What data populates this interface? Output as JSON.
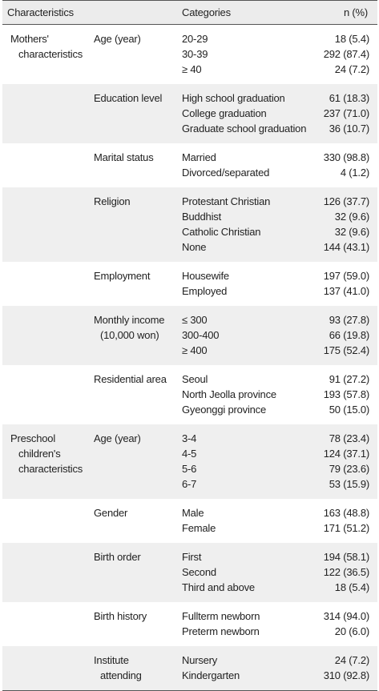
{
  "header": {
    "characteristics": "Characteristics",
    "categories": "Categories",
    "n_percent": "n (%)"
  },
  "groups": [
    {
      "label_lines": [
        "Mothers'",
        "characteristics"
      ]
    },
    {
      "label_lines": [
        "Preschool",
        "children's",
        "characteristics"
      ]
    }
  ],
  "rows": [
    {
      "group": 0,
      "shaded": false,
      "label_lines": [
        "Age (year)"
      ],
      "categories": [
        "20-29",
        "30-39",
        "≥ 40"
      ],
      "values": [
        "18 (5.4)",
        "292 (87.4)",
        "24 (7.2)"
      ]
    },
    {
      "group": 0,
      "shaded": true,
      "label_lines": [
        "Education level"
      ],
      "categories": [
        "High school graduation",
        "College graduation",
        "Graduate school graduation"
      ],
      "values": [
        "61 (18.3)",
        "237 (71.0)",
        "36 (10.7)"
      ]
    },
    {
      "group": 0,
      "shaded": false,
      "label_lines": [
        "Marital status"
      ],
      "categories": [
        "Married",
        "Divorced/separated"
      ],
      "values": [
        "330 (98.8)",
        "4 (1.2)"
      ]
    },
    {
      "group": 0,
      "shaded": true,
      "label_lines": [
        "Religion"
      ],
      "categories": [
        "Protestant Christian",
        "Buddhist",
        "Catholic Christian",
        "None"
      ],
      "values": [
        "126 (37.7)",
        "32 (9.6)",
        "32 (9.6)",
        "144 (43.1)"
      ]
    },
    {
      "group": 0,
      "shaded": false,
      "label_lines": [
        "Employment"
      ],
      "categories": [
        "Housewife",
        "Employed"
      ],
      "values": [
        "197 (59.0)",
        "137 (41.0)"
      ]
    },
    {
      "group": 0,
      "shaded": true,
      "label_lines": [
        "Monthly income",
        "(10,000 won)"
      ],
      "categories": [
        "≤ 300",
        "300-400",
        "≥ 400"
      ],
      "values": [
        "93 (27.8)",
        "66 (19.8)",
        "175 (52.4)"
      ]
    },
    {
      "group": 0,
      "shaded": false,
      "label_lines": [
        "Residential area"
      ],
      "categories": [
        "Seoul",
        "North Jeolla province",
        "Gyeonggi province"
      ],
      "values": [
        "91 (27.2)",
        "193 (57.8)",
        "50 (15.0)"
      ]
    },
    {
      "group": 1,
      "shaded": true,
      "label_lines": [
        "Age (year)"
      ],
      "categories": [
        "3-4",
        "4-5",
        "5-6",
        "6-7"
      ],
      "values": [
        "78 (23.4)",
        "124 (37.1)",
        "79 (23.6)",
        "53 (15.9)"
      ]
    },
    {
      "group": 1,
      "shaded": false,
      "label_lines": [
        "Gender"
      ],
      "categories": [
        "Male",
        "Female"
      ],
      "values": [
        "163 (48.8)",
        "171 (51.2)"
      ]
    },
    {
      "group": 1,
      "shaded": true,
      "label_lines": [
        "Birth order"
      ],
      "categories": [
        "First",
        "Second",
        "Third and above"
      ],
      "values": [
        "194 (58.1)",
        "122 (36.5)",
        "18 (5.4)"
      ]
    },
    {
      "group": 1,
      "shaded": false,
      "label_lines": [
        "Birth history"
      ],
      "categories": [
        "Fullterm newborn",
        "Preterm newborn"
      ],
      "values": [
        "314 (94.0)",
        "20 (6.0)"
      ]
    },
    {
      "group": 1,
      "shaded": true,
      "label_lines": [
        "Institute",
        "attending"
      ],
      "categories": [
        "Nursery",
        "Kindergarten"
      ],
      "values": [
        "24 (7.2)",
        "310 (92.8)"
      ]
    }
  ]
}
